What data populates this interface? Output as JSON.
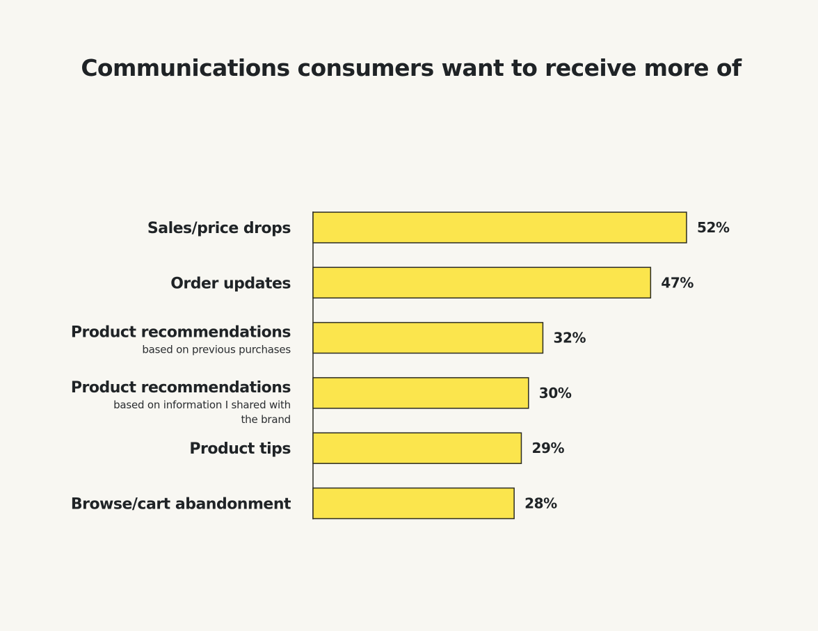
{
  "chart_data": {
    "type": "bar",
    "orientation": "horizontal",
    "title": "Communications consumers want to receive more of",
    "categories": [
      {
        "label": "Sales/price drops",
        "sublabel": []
      },
      {
        "label": "Order updates",
        "sublabel": []
      },
      {
        "label": "Product recommendations",
        "sublabel": [
          "based on previous purchases"
        ]
      },
      {
        "label": "Product recommendations",
        "sublabel": [
          "based on information I shared with",
          "the brand"
        ]
      },
      {
        "label": "Product tips",
        "sublabel": []
      },
      {
        "label": "Browse/cart abandonment",
        "sublabel": []
      }
    ],
    "values": [
      52,
      47,
      32,
      30,
      29,
      28
    ],
    "value_labels": [
      "52%",
      "47%",
      "32%",
      "30%",
      "29%",
      "28%"
    ],
    "unit": "%",
    "xlim": [
      0,
      100
    ],
    "xlabel": "",
    "ylabel": "",
    "grid": false,
    "legend": "none",
    "colors": {
      "bar_fill": "#fbe54d",
      "bar_stroke": "#2b2b22",
      "axis": "#2b2b22",
      "background": "#f8f7f2",
      "text": "#1f2326"
    }
  }
}
